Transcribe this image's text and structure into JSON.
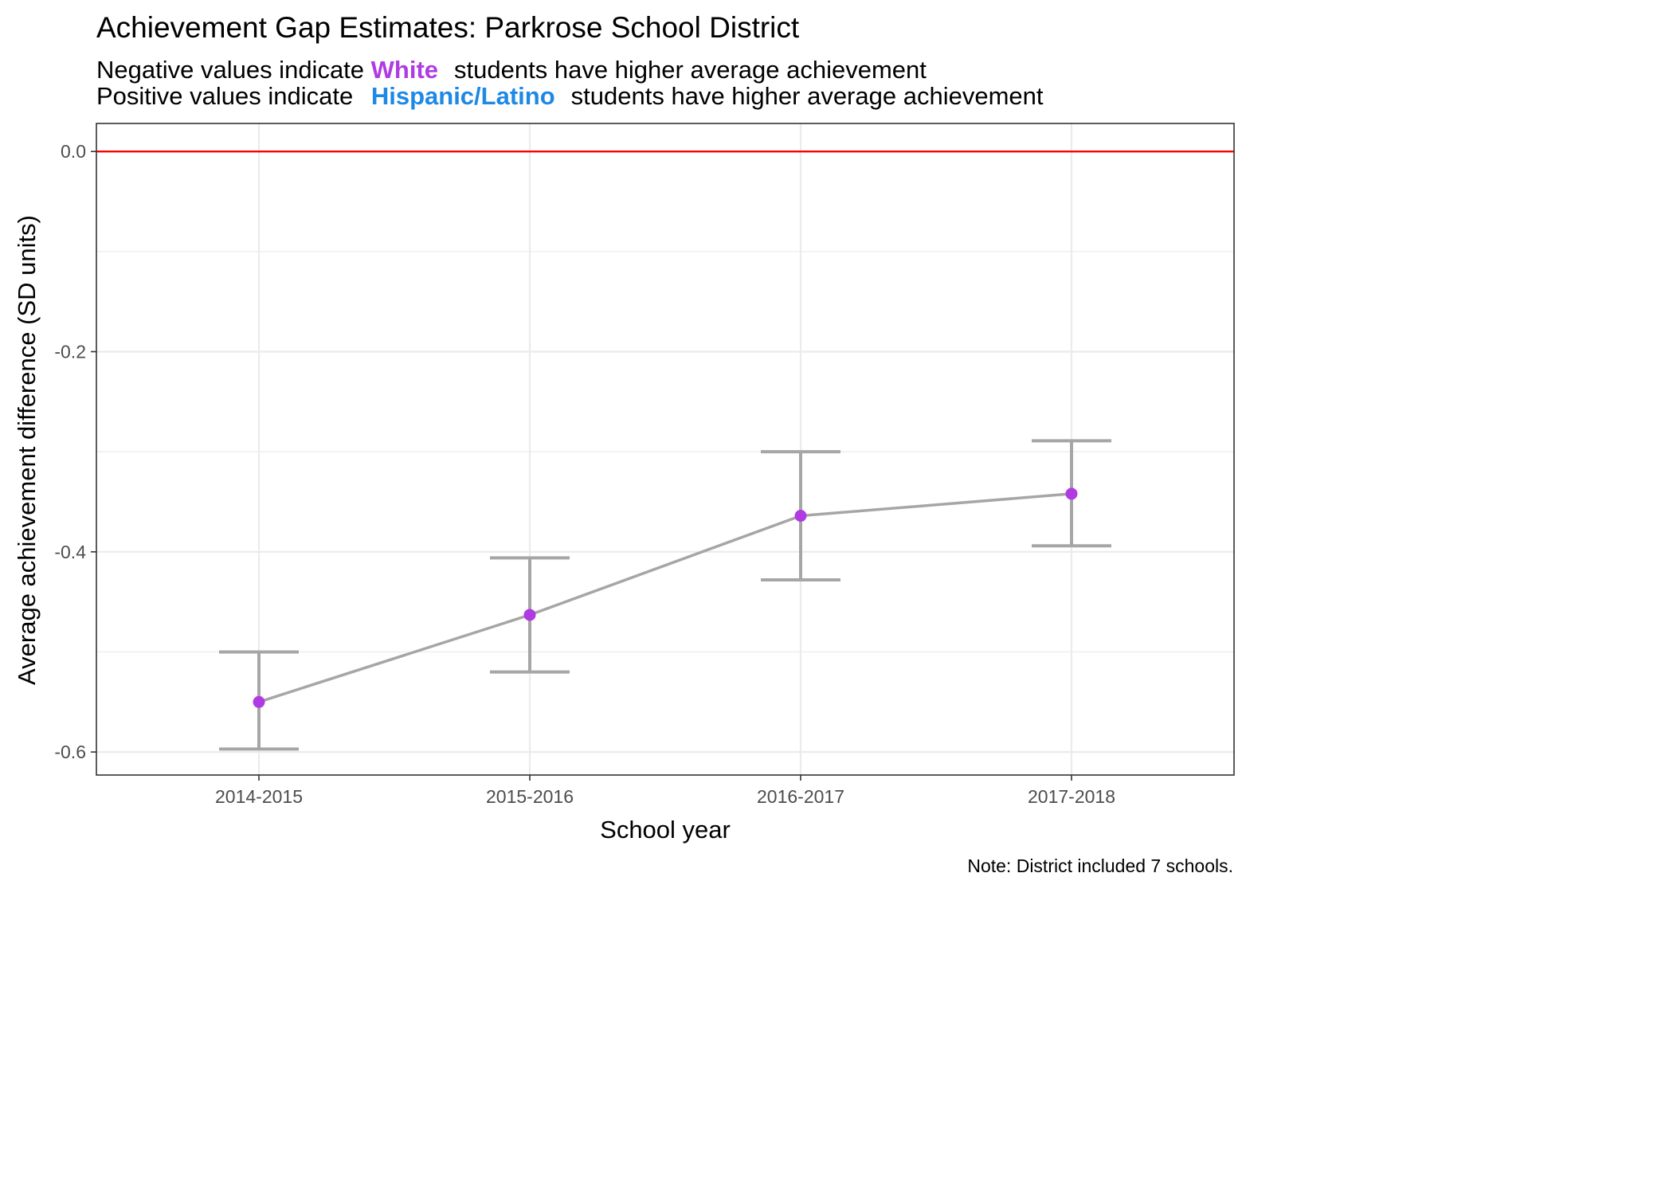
{
  "chart_data": {
    "type": "line",
    "title": "Achievement Gap Estimates: Parkrose School District",
    "subtitle": {
      "line1": {
        "prefix": "Negative values indicate ",
        "highlight": "White",
        "suffix": "students have higher average achievement"
      },
      "line2": {
        "prefix": "Positive values indicate ",
        "highlight": "Hispanic/Latino",
        "suffix": "students have higher average achievement"
      }
    },
    "xlabel": "School year",
    "ylabel": "Average achievement difference (SD units)",
    "caption": "Note: District included 7 schools.",
    "categories": [
      "2014-2015",
      "2015-2016",
      "2016-2017",
      "2017-2018"
    ],
    "values": [
      -0.55,
      -0.463,
      -0.364,
      -0.342
    ],
    "lower": [
      -0.597,
      -0.52,
      -0.428,
      -0.394
    ],
    "upper": [
      -0.5,
      -0.406,
      -0.3,
      -0.289
    ],
    "y_ticks": [
      0.0,
      -0.2,
      -0.4,
      -0.6
    ],
    "y_tick_labels": [
      "0.0",
      "-0.2",
      "-0.4",
      "-0.6"
    ],
    "ylim": [
      -0.623,
      0.028
    ],
    "reference_line": 0,
    "grid": true,
    "colors": {
      "white": "#b03be3",
      "hispanic": "#1e88e5",
      "point": "#b03be3",
      "line": "#a6a6a6",
      "reference": "#ff0000",
      "grid": "#ebebeb"
    }
  }
}
